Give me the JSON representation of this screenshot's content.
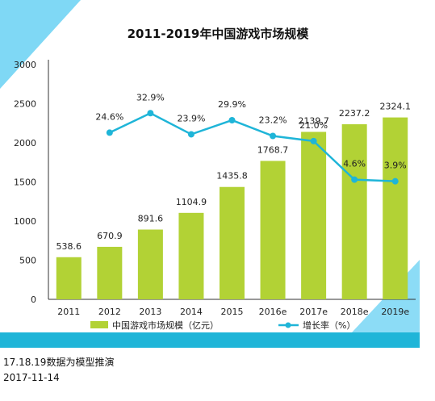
{
  "chart_data": {
    "type": "bar",
    "title": "2011-2019年中国游戏市场规模",
    "categories": [
      "2011",
      "2012",
      "2013",
      "2014",
      "2015",
      "2016e",
      "2017e",
      "2018e",
      "2019e"
    ],
    "series": [
      {
        "name": "中国游戏市场规模（亿元）",
        "type": "bar",
        "axis": "left",
        "values": [
          538.6,
          670.9,
          891.6,
          1104.9,
          1435.8,
          1768.7,
          2139.7,
          2237.2,
          2324.1
        ],
        "labels": [
          "538.6",
          "670.9",
          "891.6",
          "1104.9",
          "1435.8",
          "1768.7",
          "2139.7",
          "2237.2",
          "2324.1"
        ],
        "color": "#b2d235"
      },
      {
        "name": "增长率（%）",
        "type": "line",
        "axis": "right",
        "x": [
          "2012",
          "2013",
          "2014",
          "2015",
          "2016e",
          "2017e",
          "2018e",
          "2019e"
        ],
        "values": [
          24.6,
          32.9,
          23.9,
          29.9,
          23.2,
          21.0,
          4.6,
          3.9
        ],
        "labels": [
          "24.6%",
          "32.9%",
          "23.9%",
          "29.9%",
          "23.2%",
          "21.0%",
          "4.6%",
          "3.9%"
        ],
        "color": "#1fb5d8"
      }
    ],
    "yticks": [
      "0",
      "500",
      "1000",
      "1500",
      "2000",
      "2500",
      "3000"
    ],
    "ylim": [
      0,
      3000
    ],
    "grid": false,
    "legend_position": "bottom"
  },
  "footer": {
    "note": "17.18.19数据为模型推演",
    "date": "2017-11-14"
  },
  "colors": {
    "accent": "#1fb5d8",
    "corner": "#7fd8f5",
    "bar": "#b2d235"
  }
}
